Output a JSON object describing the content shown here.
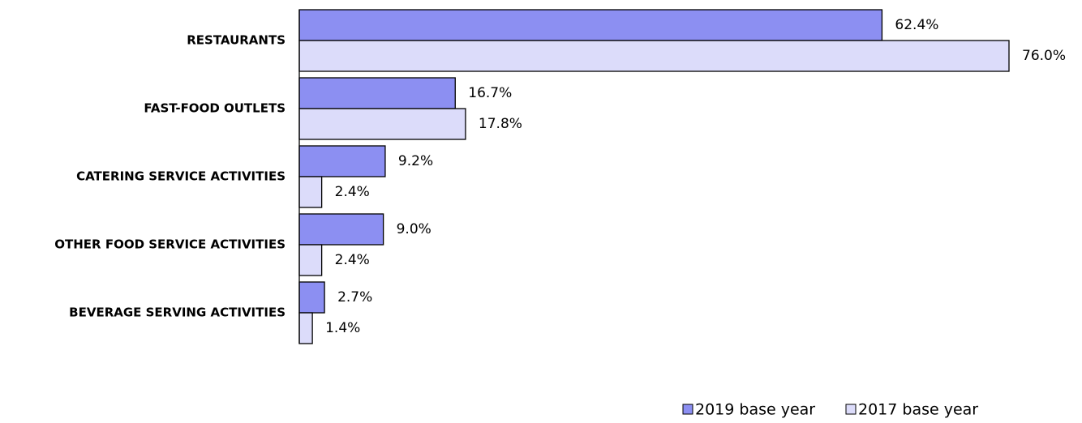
{
  "chart_data": {
    "type": "bar",
    "orientation": "horizontal",
    "categories": [
      "RESTAURANTS",
      "FAST-FOOD OUTLETS",
      "CATERING SERVICE ACTIVITIES",
      "OTHER FOOD SERVICE ACTIVITIES",
      "BEVERAGE SERVING ACTIVITIES"
    ],
    "series": [
      {
        "name": "2019 base year",
        "color": "#8c8ff2",
        "values": [
          62.4,
          16.7,
          9.2,
          9.0,
          2.7
        ],
        "value_labels": [
          "62.4%",
          "16.7%",
          "9.2%",
          "9.0%",
          "2.7%"
        ]
      },
      {
        "name": "2017 base year",
        "color": "#dcdcfa",
        "values": [
          76.0,
          17.8,
          2.4,
          2.4,
          1.4
        ],
        "value_labels": [
          "76.0%",
          "17.8%",
          "2.4%",
          "2.4%",
          "1.4%"
        ]
      }
    ],
    "legend": "bottom-right"
  }
}
